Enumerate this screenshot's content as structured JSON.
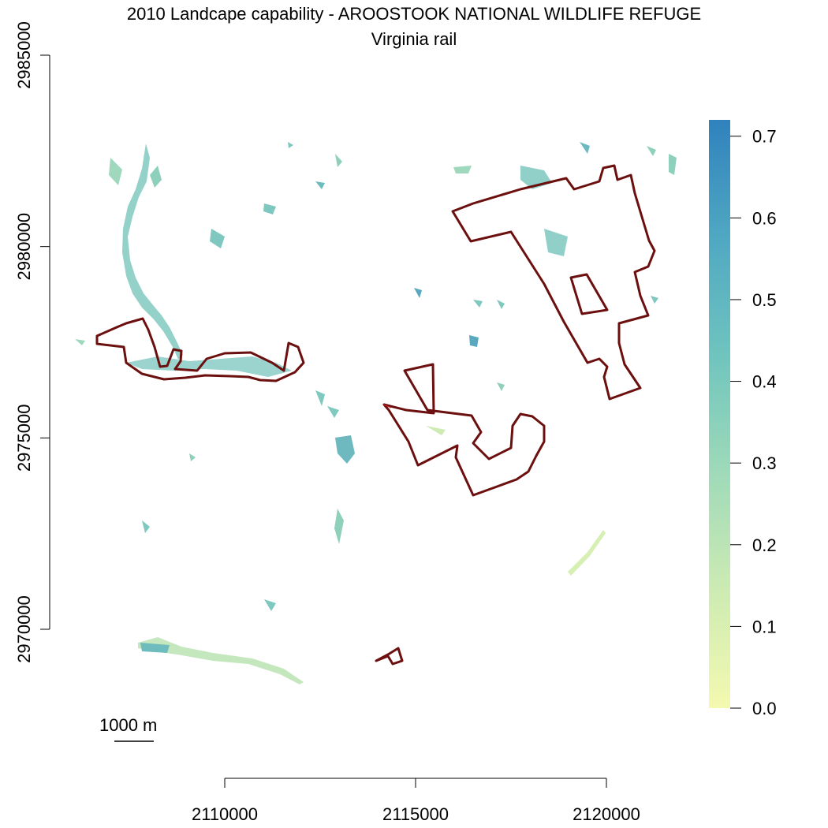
{
  "title": "2010 Landcape capability - AROOSTOOK NATIONAL WILDLIFE REFUGE",
  "subtitle": "Virginia rail",
  "scale_bar": {
    "label": "1000 m"
  },
  "colors": {
    "boundary": "#6b0f0f",
    "boundary_highlight": "#cc2222",
    "ramp": [
      "#f4f9b0",
      "#cdebb3",
      "#9fdab9",
      "#6fc4be",
      "#4fa8c2",
      "#2f82bd"
    ]
  },
  "chart_data": {
    "type": "heatmap",
    "title": "2010 Landcape capability - AROOSTOOK NATIONAL WILDLIFE REFUGE",
    "subtitle": "Virginia rail",
    "x_axis": {
      "ticks": [
        2110000,
        2115000,
        2120000
      ],
      "tick_labels": [
        "2110000",
        "2115000",
        "2120000"
      ]
    },
    "y_axis": {
      "ticks": [
        2970000,
        2975000,
        2980000,
        2985000
      ],
      "tick_labels": [
        "2970000",
        "2975000",
        "2980000",
        "2985000"
      ]
    },
    "colorbar": {
      "range": [
        0,
        0.72
      ],
      "ticks": [
        0.0,
        0.1,
        0.2,
        0.3,
        0.4,
        0.5,
        0.6,
        0.7
      ],
      "tick_labels": [
        "0.0",
        "0.1",
        "0.2",
        "0.3",
        "0.4",
        "0.5",
        "0.6",
        "0.7"
      ]
    }
  }
}
